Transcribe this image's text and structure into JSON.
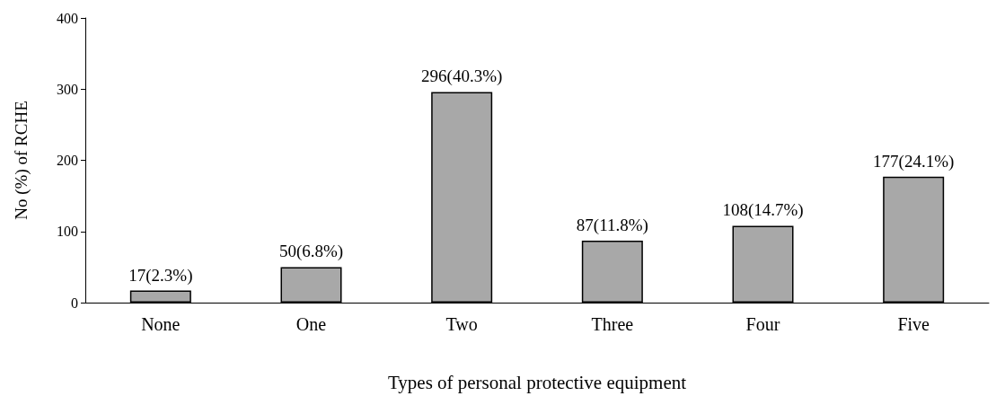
{
  "chart_data": {
    "type": "bar",
    "xlabel": "Types of personal protective equipment",
    "ylabel": "No (%) of RCHE",
    "categories": [
      "None",
      "One",
      "Two",
      "Three",
      "Four",
      "Five"
    ],
    "values": [
      17,
      50,
      296,
      87,
      108,
      177
    ],
    "value_labels": [
      "17(2.3%)",
      "50(6.8%)",
      "296(40.3%)",
      "87(11.8%)",
      "108(14.7%)",
      "177(24.1%)"
    ],
    "color": "#a8a8a8",
    "ylim": [
      0,
      400
    ],
    "yticks": [
      0,
      100,
      200,
      300,
      400
    ]
  }
}
